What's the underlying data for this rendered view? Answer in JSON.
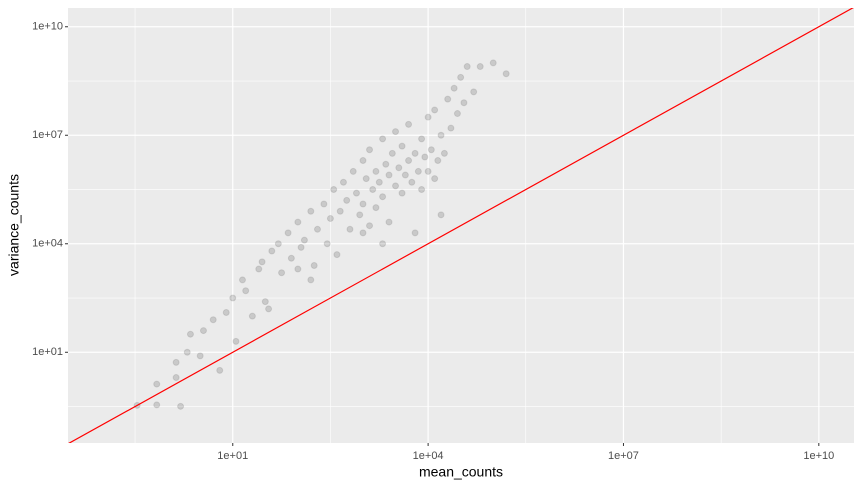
{
  "chart_data": {
    "type": "scatter",
    "x_label": "mean_counts",
    "y_label": "variance_counts",
    "log_x": true,
    "log_y": true,
    "grid": true,
    "xlim": [
      0.0295,
      34700000000.0
    ],
    "ylim": [
      0.031,
      33000000000.0
    ],
    "xticks": [
      {
        "value": 10,
        "label": "1e+01"
      },
      {
        "value": 10000,
        "label": "1e+04"
      },
      {
        "value": 10000000.0,
        "label": "1e+07"
      },
      {
        "value": 10000000000.0,
        "label": "1e+10"
      }
    ],
    "yticks": [
      {
        "value": 10,
        "label": "1e+01"
      },
      {
        "value": 10000,
        "label": "1e+04"
      },
      {
        "value": 10000000.0,
        "label": "1e+07"
      },
      {
        "value": 10000000000.0,
        "label": "1e+10"
      }
    ],
    "xminor": [
      0.316,
      316,
      316000,
      316000000.0
    ],
    "yminor": [
      0.316,
      316,
      316000,
      316000000.0
    ],
    "color": "#000000",
    "reference_line": {
      "slope": 1,
      "intercept": 0,
      "color": "#ff0000"
    },
    "x": [
      0.34,
      0.68,
      0.68,
      1.35,
      1.35,
      1.58,
      2,
      2.24,
      3.16,
      3.55,
      5.01,
      6.31,
      7.94,
      10,
      11.2,
      14.1,
      15.8,
      20,
      25.1,
      28.2,
      35.5,
      39.8,
      50.1,
      56.2,
      70.8,
      79.4,
      100,
      112,
      126,
      158,
      178,
      200,
      251,
      282,
      316,
      355,
      398,
      447,
      501,
      562,
      631,
      708,
      794,
      891,
      1000,
      1000,
      1120,
      1260,
      1260,
      1410,
      1580,
      1580,
      1780,
      2000,
      2000,
      2240,
      2510,
      2510,
      2820,
      3160,
      3160,
      3550,
      3980,
      3980,
      4470,
      5010,
      5010,
      5620,
      6310,
      6310,
      7080,
      7940,
      7940,
      8910,
      10000,
      10000,
      11200,
      12600,
      12600,
      14100,
      15800,
      17800,
      20000,
      22400,
      25100,
      28200,
      31600,
      35500,
      39800,
      50100,
      63100,
      100000,
      158000,
      2000,
      1000,
      158,
      100,
      31.6,
      15800
    ],
    "y": [
      0.34,
      1.32,
      0.35,
      5.25,
      2,
      0.32,
      10,
      31.6,
      7.94,
      39.8,
      79.4,
      3.16,
      126,
      316,
      20,
      1000,
      501,
      100,
      2000,
      3160,
      158,
      6310,
      10000,
      1580,
      20000,
      3980,
      39800,
      7940,
      12600,
      79400,
      2510,
      25100,
      126000,
      10000,
      50100,
      316000,
      5010,
      79400,
      501000,
      158000,
      25100,
      1000000,
      251000,
      63100,
      2000000,
      126000,
      631000,
      31600,
      3980000,
      316000,
      1000000,
      100000,
      501000,
      7940000,
      200000,
      1580000,
      794000,
      39800,
      3160000,
      398000,
      12600000.0,
      1260000,
      251000,
      5010000,
      794000,
      2000000,
      20000000.0,
      501000,
      3160000,
      20000,
      1000000,
      7940000,
      316000,
      2510000,
      31600000.0,
      1000000,
      3980000,
      631000,
      50100000.0,
      2000000,
      10000000.0,
      3160000,
      100000000.0,
      15800000.0,
      200000000.0,
      39800000.0,
      398000000.0,
      79400000.0,
      794000000.0,
      158000000.0,
      794000000.0,
      1000000000.0,
      501000000.0,
      10000,
      20000,
      1000,
      2000,
      251,
      63100
    ]
  }
}
